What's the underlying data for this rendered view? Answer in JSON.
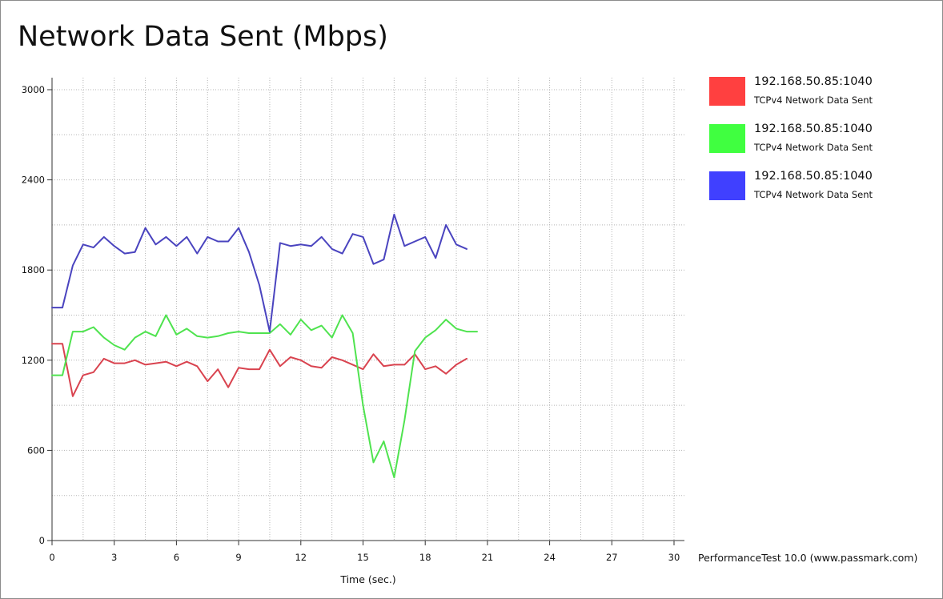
{
  "footer": "PerformanceTest 10.0 (www.passmark.com)",
  "chart_data": {
    "type": "line",
    "title": "Network Data Sent (Mbps)",
    "xlabel": "Time (sec.)",
    "ylabel": "",
    "xlim": [
      0,
      30
    ],
    "ylim": [
      0,
      3000
    ],
    "xticks": [
      0,
      3,
      6,
      9,
      12,
      15,
      18,
      21,
      24,
      27,
      30
    ],
    "yticks": [
      0,
      600,
      1200,
      1800,
      2400,
      3000
    ],
    "grid": true,
    "legend_position": "right",
    "series": [
      {
        "name": "192.168.50.85:1040",
        "description": "TCPv4 Network Data Sent",
        "color": "#ff4040",
        "line_color": "#d9434f",
        "x": [
          0,
          0.5,
          1,
          1.5,
          2,
          2.5,
          3,
          3.5,
          4,
          4.5,
          5,
          5.5,
          6,
          6.5,
          7,
          7.5,
          8,
          8.5,
          9,
          9.5,
          10,
          10.5,
          11,
          11.5,
          12,
          12.5,
          13,
          13.5,
          14,
          14.5,
          15,
          15.5,
          16,
          16.5,
          17,
          17.5,
          18,
          18.5,
          19,
          19.5,
          20
        ],
        "y": [
          1310,
          1310,
          960,
          1100,
          1120,
          1210,
          1180,
          1180,
          1200,
          1170,
          1180,
          1190,
          1160,
          1190,
          1160,
          1060,
          1140,
          1020,
          1150,
          1140,
          1140,
          1270,
          1160,
          1220,
          1200,
          1160,
          1150,
          1220,
          1200,
          1170,
          1140,
          1240,
          1160,
          1170,
          1170,
          1240,
          1140,
          1160,
          1110,
          1170,
          1210
        ]
      },
      {
        "name": "192.168.50.85:1040",
        "description": "TCPv4 Network Data Sent",
        "color": "#40ff40",
        "line_color": "#4fe34f",
        "x": [
          0,
          0.5,
          1,
          1.5,
          2,
          2.5,
          3,
          3.5,
          4,
          4.5,
          5,
          5.5,
          6,
          6.5,
          7,
          7.5,
          8,
          8.5,
          9,
          9.5,
          10,
          10.5,
          11,
          11.5,
          12,
          12.5,
          13,
          13.5,
          14,
          14.5,
          15,
          15.5,
          16,
          16.5,
          17,
          17.5,
          18,
          18.5,
          19,
          19.5,
          20,
          20.5
        ],
        "y": [
          1100,
          1100,
          1390,
          1390,
          1420,
          1350,
          1300,
          1270,
          1350,
          1390,
          1360,
          1500,
          1370,
          1410,
          1360,
          1350,
          1360,
          1380,
          1390,
          1380,
          1380,
          1380,
          1440,
          1370,
          1470,
          1400,
          1430,
          1350,
          1500,
          1380,
          900,
          520,
          660,
          420,
          800,
          1260,
          1350,
          1400,
          1470,
          1410,
          1390,
          1390
        ]
      },
      {
        "name": "192.168.50.85:1040",
        "description": "TCPv4 Network Data Sent",
        "color": "#4040ff",
        "line_color": "#4a44bf",
        "x": [
          0,
          0.5,
          1,
          1.5,
          2,
          2.5,
          3,
          3.5,
          4,
          4.5,
          5,
          5.5,
          6,
          6.5,
          7,
          7.5,
          8,
          8.5,
          9,
          9.5,
          10,
          10.5,
          11,
          11.5,
          12,
          12.5,
          13,
          13.5,
          14,
          14.5,
          15,
          15.5,
          16,
          16.5,
          17,
          17.5,
          18,
          18.5,
          19,
          19.5,
          20
        ],
        "y": [
          1550,
          1550,
          1830,
          1970,
          1950,
          2020,
          1960,
          1910,
          1920,
          2080,
          1970,
          2020,
          1960,
          2020,
          1910,
          2020,
          1990,
          1990,
          2080,
          1920,
          1700,
          1390,
          1980,
          1960,
          1970,
          1960,
          2020,
          1940,
          1910,
          2040,
          2020,
          1840,
          1870,
          2170,
          1960,
          1990,
          2020,
          1880,
          2100,
          1970,
          1940
        ]
      }
    ]
  }
}
